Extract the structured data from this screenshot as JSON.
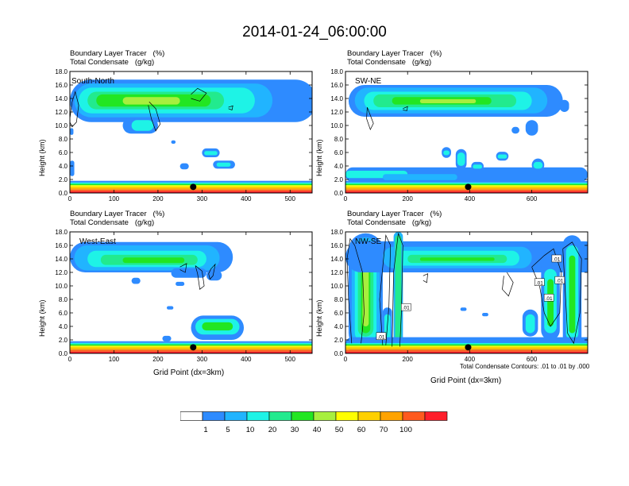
{
  "main_title": "2014-01-24_06:00:00",
  "colors": {
    "scale": [
      "#ffffff",
      "#2e8bff",
      "#21b4ff",
      "#1ef3e6",
      "#22ea8e",
      "#22e622",
      "#a7ef3e",
      "#ffff00",
      "#ffd000",
      "#ffa300",
      "#ff5a1e",
      "#ff1e2b"
    ],
    "contour": "#000000",
    "marker": "#000000"
  },
  "colorbar": {
    "labels": [
      "1",
      "5",
      "10",
      "20",
      "30",
      "40",
      "50",
      "60",
      "70",
      "100"
    ]
  },
  "chart_data": [
    {
      "type": "heatmap",
      "name": "South-North",
      "title_line1": "Boundary Layer Tracer   (%)",
      "title_line2": "Total Condensate   (g/kg)",
      "xlabel": "",
      "ylabel": "Height (km)",
      "xlim": [
        0,
        550
      ],
      "ylim": [
        0,
        18
      ],
      "xticks": [
        0,
        100,
        200,
        300,
        400,
        500
      ],
      "yticks": [
        "0.0",
        "2.0",
        "4.0",
        "6.0",
        "8.0",
        "10.0",
        "12.0",
        "14.0",
        "16.0",
        "18.0"
      ],
      "marker_x": 280,
      "footnote": ""
    },
    {
      "type": "heatmap",
      "name": "SW-NE",
      "title_line1": "Boundary Layer Tracer   (%)",
      "title_line2": "Total Condensate   (g/kg)",
      "xlabel": "",
      "ylabel": "Height (km)",
      "xlim": [
        0,
        780
      ],
      "ylim": [
        0,
        18
      ],
      "xticks": [
        0,
        200,
        400,
        600
      ],
      "yticks": [
        "0.0",
        "2.0",
        "4.0",
        "6.0",
        "8.0",
        "10.0",
        "12.0",
        "14.0",
        "16.0",
        "18.0"
      ],
      "marker_x": 395,
      "footnote": ""
    },
    {
      "type": "heatmap",
      "name": "West-East",
      "title_line1": "Boundary Layer Tracer   (%)",
      "title_line2": "Total Condensate   (g/kg)",
      "xlabel": "Grid Point (dx=3km)",
      "ylabel": "Height (km)",
      "xlim": [
        0,
        550
      ],
      "ylim": [
        0,
        18
      ],
      "xticks": [
        0,
        100,
        200,
        300,
        400,
        500
      ],
      "yticks": [
        "0.0",
        "2.0",
        "4.0",
        "6.0",
        "8.0",
        "10.0",
        "12.0",
        "14.0",
        "16.0",
        "18.0"
      ],
      "marker_x": 280,
      "footnote": ""
    },
    {
      "type": "heatmap",
      "name": "NW-SE",
      "title_line1": "Boundary Layer Tracer   (%)",
      "title_line2": "Total Condensate   (g/kg)",
      "xlabel": "Grid Point (dx=3km)",
      "ylabel": "Height (km)",
      "xlim": [
        0,
        780
      ],
      "ylim": [
        0,
        18
      ],
      "xticks": [
        0,
        200,
        400,
        600
      ],
      "yticks": [
        "0.0",
        "2.0",
        "4.0",
        "6.0",
        "8.0",
        "10.0",
        "12.0",
        "14.0",
        "16.0",
        "18.0"
      ],
      "marker_x": 395,
      "footnote": "Total Condensate Contours: .01 to .01 by .000",
      "contour_label": ".01"
    }
  ]
}
